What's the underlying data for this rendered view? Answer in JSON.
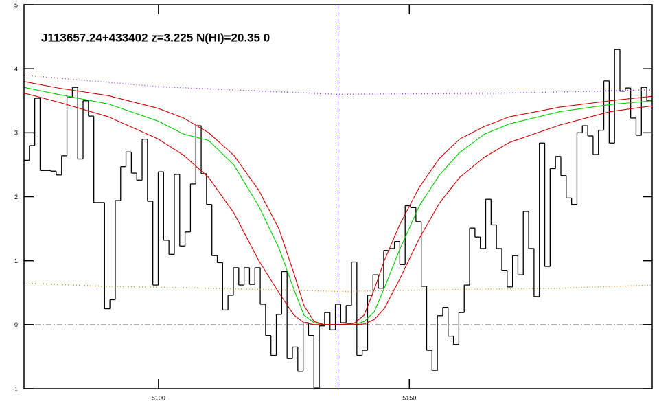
{
  "chart_data": {
    "type": "step",
    "title": "J113657.24+433402 z=3.225 N(HI)=20.35 0",
    "xlim": [
      5073.2,
      5198.4
    ],
    "ylim": [
      -1,
      5
    ],
    "xticks": [
      5100,
      5150
    ],
    "yticks": [
      -1,
      0,
      1,
      2,
      3,
      4,
      5
    ],
    "hline": 0,
    "hline_color": "#888888",
    "vline": 5135.8,
    "vline_color": "#1a1acc",
    "series": [
      {
        "style": "steps",
        "color": "#000000",
        "bins": [
          5073.2,
          5074.27,
          5075.34,
          5076.41,
          5077.48,
          5078.55,
          5079.62,
          5080.69,
          5081.76,
          5082.83,
          5083.9,
          5084.97,
          5086.04,
          5087.11,
          5088.18,
          5089.25,
          5090.32,
          5091.39,
          5092.46,
          5093.53,
          5094.6,
          5095.67,
          5096.74,
          5097.81,
          5098.88,
          5099.95,
          5101.02,
          5102.09,
          5103.16,
          5104.23,
          5105.3,
          5106.37,
          5107.44,
          5108.51,
          5109.58,
          5110.65,
          5111.72,
          5112.79,
          5113.86,
          5114.93,
          5116.0,
          5117.07,
          5118.14,
          5119.21,
          5120.28,
          5121.35,
          5122.42,
          5123.49,
          5124.56,
          5125.63,
          5126.7,
          5127.77,
          5128.84,
          5129.91,
          5130.98,
          5132.05,
          5133.12,
          5134.19,
          5135.26,
          5136.33,
          5137.4,
          5138.47,
          5139.54,
          5140.61,
          5141.68,
          5142.75,
          5143.82,
          5144.89,
          5145.96,
          5147.03,
          5148.1,
          5149.17,
          5150.24,
          5151.31,
          5152.38,
          5153.45,
          5154.52,
          5155.59,
          5156.66,
          5157.73,
          5158.8,
          5159.87,
          5160.94,
          5162.01,
          5163.08,
          5164.15,
          5165.22,
          5166.29,
          5167.36,
          5168.43,
          5169.5,
          5170.57,
          5171.64,
          5172.71,
          5173.78,
          5174.85,
          5175.92,
          5176.99,
          5178.06,
          5179.13,
          5180.2,
          5181.27,
          5182.34,
          5183.41,
          5184.48,
          5185.55,
          5186.62,
          5187.69,
          5188.76,
          5189.83,
          5190.9,
          5191.97,
          5193.04,
          5194.11,
          5195.18,
          5196.25,
          5197.32,
          5198.39
        ],
        "values": [
          2.57,
          2.8,
          3.54,
          2.41,
          2.41,
          2.4,
          2.34,
          2.64,
          3.55,
          3.71,
          2.59,
          3.5,
          3.26,
          1.91,
          1.91,
          0.25,
          0.39,
          1.94,
          2.47,
          2.7,
          2.37,
          2.26,
          2.9,
          1.93,
          0.62,
          2.39,
          1.32,
          1.1,
          2.35,
          1.23,
          1.45,
          2.2,
          3.11,
          2.36,
          1.88,
          1.08,
          0.97,
          0.23,
          0.46,
          0.89,
          0.62,
          0.89,
          0.63,
          0.89,
          0.32,
          -0.17,
          -0.48,
          0.16,
          0.83,
          -0.53,
          -0.35,
          -0.73,
          0.03,
          -0.17,
          -0.99,
          -0.02,
          0.19,
          -0.08,
          0.32,
          0.03,
          0.3,
          0.98,
          -0.48,
          -0.4,
          0.46,
          0.78,
          0.57,
          1.16,
          1.19,
          1.3,
          0.94,
          1.86,
          1.83,
          1.61,
          0.6,
          -0.4,
          -0.72,
          0.14,
          0.27,
          -0.18,
          -0.31,
          0.19,
          0.62,
          1.51,
          1.37,
          1.19,
          1.96,
          1.56,
          1.19,
          0.85,
          0.59,
          1.08,
          0.78,
          1.77,
          1.19,
          0.44,
          2.84,
          0.91,
          2.44,
          2.63,
          2.33,
          1.98,
          1.88,
          3.0,
          3.11,
          2.95,
          2.66,
          3.04,
          3.81,
          2.84,
          4.3,
          3.65,
          3.7,
          3.23,
          2.96,
          3.71,
          3.5
        ]
      },
      {
        "style": "solid",
        "color": "#00cc00",
        "x": [
          5073.2,
          5080,
          5090,
          5100,
          5105,
          5110,
          5115,
          5120,
          5124,
          5127,
          5129,
          5131,
          5133,
          5136,
          5139,
          5141,
          5143,
          5145,
          5148,
          5152,
          5156,
          5160,
          5165,
          5170,
          5180,
          5190,
          5198.4
        ],
        "values": [
          3.71,
          3.6,
          3.45,
          3.18,
          2.98,
          2.88,
          2.5,
          1.85,
          1.2,
          0.55,
          0.15,
          0.03,
          0,
          0,
          0,
          0.05,
          0.2,
          0.57,
          1.16,
          1.86,
          2.34,
          2.69,
          2.98,
          3.14,
          3.33,
          3.44,
          3.5
        ]
      },
      {
        "style": "solid",
        "color": "#cc0000",
        "x": [
          5073.2,
          5080,
          5090,
          5100,
          5105,
          5110,
          5115,
          5120,
          5124,
          5127,
          5129,
          5131,
          5133,
          5136,
          5139,
          5141,
          5143,
          5145,
          5148,
          5152,
          5156,
          5160,
          5165,
          5170,
          5180,
          5190,
          5198.4
        ],
        "values": [
          3.8,
          3.7,
          3.58,
          3.38,
          3.23,
          3.0,
          2.65,
          2.1,
          1.5,
          0.8,
          0.3,
          0.05,
          0,
          0,
          0.02,
          0.15,
          0.55,
          1.0,
          1.55,
          2.15,
          2.6,
          2.9,
          3.1,
          3.25,
          3.4,
          3.5,
          3.57
        ]
      },
      {
        "style": "solid",
        "color": "#cc0000",
        "x": [
          5073.2,
          5080,
          5090,
          5100,
          5105,
          5110,
          5115,
          5120,
          5124,
          5127,
          5129,
          5131,
          5133,
          5136,
          5139,
          5141,
          5143,
          5145,
          5148,
          5152,
          5156,
          5160,
          5165,
          5170,
          5180,
          5190,
          5198.4
        ],
        "values": [
          3.62,
          3.48,
          3.25,
          2.9,
          2.65,
          2.3,
          1.75,
          1.0,
          0.5,
          0.15,
          0.03,
          0,
          0,
          0,
          0,
          0.01,
          0.08,
          0.25,
          0.7,
          1.35,
          1.9,
          2.3,
          2.62,
          2.85,
          3.12,
          3.33,
          3.42
        ]
      },
      {
        "style": "dotted",
        "color": "#9933ff",
        "x": [
          5073.2,
          5100,
          5136,
          5170,
          5198.4
        ],
        "values": [
          3.9,
          3.72,
          3.6,
          3.62,
          3.67
        ]
      },
      {
        "style": "dotted",
        "color": "#ff8800",
        "x": [
          5073.2,
          5090,
          5110,
          5136,
          5160,
          5180,
          5198.4
        ],
        "values": [
          0.65,
          0.6,
          0.57,
          0.52,
          0.55,
          0.57,
          0.62
        ]
      }
    ]
  }
}
